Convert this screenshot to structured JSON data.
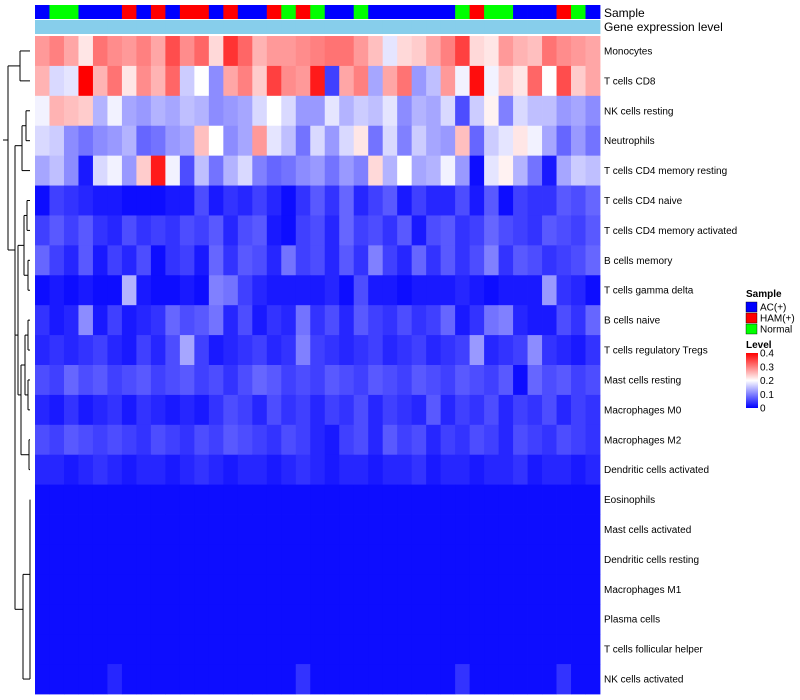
{
  "chart_data": {
    "type": "heatmap",
    "title": "",
    "row_annotation_labels": {
      "sample": "Sample",
      "gene": "Gene expression level"
    },
    "legend": {
      "sample_title": "Sample",
      "level_title": "Level",
      "sample_groups": [
        {
          "name": "AC(+)",
          "color": "#0000ff"
        },
        {
          "name": "HAM(+)",
          "color": "#ff0000"
        },
        {
          "name": "Normal",
          "color": "#00ff00"
        }
      ],
      "level_ticks": [
        "0.4",
        "0.3",
        "0.2",
        "0.1",
        "0"
      ],
      "level_range": [
        0,
        0.4
      ],
      "colors": {
        "low": "#0000ff",
        "mid": "#ffffff",
        "high": "#ff0000"
      }
    },
    "columns_sample_group": [
      "AC(+)",
      "Normal",
      "Normal",
      "AC(+)",
      "AC(+)",
      "AC(+)",
      "HAM(+)",
      "AC(+)",
      "HAM(+)",
      "AC(+)",
      "HAM(+)",
      "HAM(+)",
      "AC(+)",
      "HAM(+)",
      "AC(+)",
      "AC(+)",
      "HAM(+)",
      "Normal",
      "HAM(+)",
      "Normal",
      "AC(+)",
      "AC(+)",
      "Normal",
      "AC(+)",
      "AC(+)",
      "AC(+)",
      "AC(+)",
      "AC(+)",
      "AC(+)",
      "Normal",
      "HAM(+)",
      "Normal",
      "Normal",
      "AC(+)",
      "AC(+)",
      "AC(+)",
      "HAM(+)",
      "Normal",
      "AC(+)"
    ],
    "rows": [
      "Monocytes",
      "T cells CD8",
      "NK cells resting",
      "Neutrophils",
      "T cells CD4 memory resting",
      "T cells CD4 naive",
      "T cells CD4 memory activated",
      "B cells memory",
      "T cells gamma delta",
      "B cells naive",
      "T cells regulatory  Tregs",
      "Mast cells resting",
      "Macrophages M0",
      "Macrophages M2",
      "Dendritic cells activated",
      "Eosinophils",
      "Mast cells activated",
      "Dendritic cells resting",
      "Macrophages M1",
      "Plasma cells",
      "T cells follicular helper",
      "NK cells activated"
    ],
    "values": [
      [
        0.28,
        0.3,
        0.27,
        0.22,
        0.31,
        0.29,
        0.28,
        0.3,
        0.27,
        0.34,
        0.29,
        0.32,
        0.23,
        0.36,
        0.32,
        0.26,
        0.28,
        0.28,
        0.29,
        0.3,
        0.31,
        0.31,
        0.28,
        0.25,
        0.18,
        0.23,
        0.24,
        0.27,
        0.3,
        0.35,
        0.23,
        0.22,
        0.28,
        0.26,
        0.25,
        0.31,
        0.29,
        0.28,
        0.27
      ],
      [
        0.26,
        0.17,
        0.18,
        0.4,
        0.26,
        0.31,
        0.22,
        0.29,
        0.26,
        0.32,
        0.16,
        0.2,
        0.11,
        0.27,
        0.3,
        0.24,
        0.35,
        0.29,
        0.28,
        0.38,
        0.05,
        0.27,
        0.3,
        0.13,
        0.27,
        0.31,
        0.12,
        0.15,
        0.28,
        0.19,
        0.39,
        0.19,
        0.24,
        0.22,
        0.32,
        0.2,
        0.34,
        0.24,
        0.27
      ],
      [
        0.19,
        0.26,
        0.25,
        0.24,
        0.14,
        0.19,
        0.13,
        0.12,
        0.14,
        0.13,
        0.15,
        0.14,
        0.11,
        0.12,
        0.13,
        0.17,
        0.2,
        0.17,
        0.12,
        0.12,
        0.18,
        0.14,
        0.16,
        0.15,
        0.18,
        0.11,
        0.14,
        0.13,
        0.17,
        0.06,
        0.16,
        0.21,
        0.1,
        0.17,
        0.15,
        0.15,
        0.12,
        0.13,
        0.11
      ],
      [
        0.17,
        0.16,
        0.11,
        0.09,
        0.11,
        0.12,
        0.14,
        0.08,
        0.09,
        0.12,
        0.13,
        0.25,
        0.2,
        0.11,
        0.13,
        0.28,
        0.18,
        0.15,
        0.09,
        0.17,
        0.12,
        0.17,
        0.22,
        0.09,
        0.17,
        0.1,
        0.16,
        0.13,
        0.12,
        0.25,
        0.08,
        0.16,
        0.18,
        0.22,
        0.19,
        0.13,
        0.08,
        0.12,
        0.09
      ],
      [
        0.13,
        0.15,
        0.11,
        0.02,
        0.17,
        0.19,
        0.12,
        0.24,
        0.38,
        0.19,
        0.06,
        0.15,
        0.09,
        0.14,
        0.17,
        0.1,
        0.08,
        0.09,
        0.11,
        0.12,
        0.09,
        0.12,
        0.1,
        0.23,
        0.14,
        0.2,
        0.13,
        0.14,
        0.19,
        0.12,
        0.01,
        0.18,
        0.21,
        0.14,
        0.09,
        0.02,
        0.13,
        0.16,
        0.15
      ],
      [
        0.01,
        0.05,
        0.04,
        0.03,
        0.02,
        0.02,
        0.01,
        0.01,
        0.01,
        0.02,
        0.02,
        0.06,
        0.02,
        0.04,
        0.03,
        0.05,
        0.03,
        0.01,
        0.04,
        0.07,
        0.04,
        0.08,
        0.03,
        0.05,
        0.07,
        0.02,
        0.05,
        0.03,
        0.03,
        0.06,
        0.02,
        0.07,
        0.01,
        0.05,
        0.04,
        0.04,
        0.07,
        0.06,
        0.08
      ],
      [
        0.05,
        0.07,
        0.05,
        0.07,
        0.04,
        0.03,
        0.06,
        0.04,
        0.05,
        0.04,
        0.06,
        0.05,
        0.07,
        0.03,
        0.06,
        0.07,
        0.02,
        0.01,
        0.05,
        0.06,
        0.03,
        0.08,
        0.05,
        0.06,
        0.04,
        0.07,
        0.02,
        0.06,
        0.07,
        0.04,
        0.05,
        0.08,
        0.06,
        0.05,
        0.04,
        0.07,
        0.06,
        0.05,
        0.07
      ],
      [
        0.08,
        0.05,
        0.03,
        0.07,
        0.02,
        0.05,
        0.03,
        0.06,
        0.01,
        0.04,
        0.05,
        0.02,
        0.08,
        0.04,
        0.07,
        0.06,
        0.03,
        0.09,
        0.05,
        0.06,
        0.03,
        0.07,
        0.04,
        0.1,
        0.05,
        0.03,
        0.08,
        0.04,
        0.07,
        0.04,
        0.06,
        0.1,
        0.04,
        0.07,
        0.06,
        0.04,
        0.05,
        0.06,
        0.08
      ],
      [
        0.01,
        0.02,
        0.01,
        0.02,
        0.01,
        0.01,
        0.14,
        0.02,
        0.01,
        0.01,
        0.02,
        0.01,
        0.1,
        0.09,
        0.05,
        0.03,
        0.02,
        0.02,
        0.02,
        0.02,
        0.03,
        0.01,
        0.06,
        0.02,
        0.02,
        0.01,
        0.02,
        0.02,
        0.02,
        0.03,
        0.02,
        0.01,
        0.02,
        0.02,
        0.02,
        0.12,
        0.04,
        0.03,
        0.01
      ],
      [
        0.04,
        0.02,
        0.03,
        0.11,
        0.02,
        0.05,
        0.02,
        0.03,
        0.04,
        0.08,
        0.06,
        0.07,
        0.09,
        0.03,
        0.06,
        0.02,
        0.04,
        0.03,
        0.09,
        0.04,
        0.06,
        0.03,
        0.07,
        0.05,
        0.04,
        0.06,
        0.04,
        0.05,
        0.08,
        0.02,
        0.04,
        0.09,
        0.1,
        0.03,
        0.02,
        0.02,
        0.06,
        0.04,
        0.08
      ],
      [
        0.03,
        0.04,
        0.03,
        0.04,
        0.05,
        0.03,
        0.02,
        0.05,
        0.03,
        0.06,
        0.13,
        0.05,
        0.02,
        0.03,
        0.04,
        0.05,
        0.03,
        0.04,
        0.1,
        0.05,
        0.04,
        0.03,
        0.04,
        0.05,
        0.03,
        0.04,
        0.05,
        0.03,
        0.04,
        0.05,
        0.12,
        0.03,
        0.04,
        0.05,
        0.11,
        0.04,
        0.03,
        0.02,
        0.04
      ],
      [
        0.06,
        0.05,
        0.08,
        0.06,
        0.07,
        0.05,
        0.06,
        0.07,
        0.05,
        0.06,
        0.07,
        0.05,
        0.06,
        0.04,
        0.06,
        0.08,
        0.07,
        0.05,
        0.06,
        0.05,
        0.07,
        0.06,
        0.05,
        0.07,
        0.06,
        0.05,
        0.07,
        0.06,
        0.05,
        0.07,
        0.06,
        0.05,
        0.07,
        0.01,
        0.08,
        0.06,
        0.07,
        0.05,
        0.06
      ],
      [
        0.03,
        0.02,
        0.04,
        0.02,
        0.03,
        0.04,
        0.02,
        0.04,
        0.03,
        0.02,
        0.03,
        0.02,
        0.04,
        0.06,
        0.05,
        0.03,
        0.06,
        0.04,
        0.05,
        0.03,
        0.05,
        0.04,
        0.06,
        0.03,
        0.05,
        0.04,
        0.03,
        0.07,
        0.03,
        0.05,
        0.04,
        0.06,
        0.03,
        0.05,
        0.04,
        0.06,
        0.03,
        0.05,
        0.04
      ],
      [
        0.06,
        0.05,
        0.07,
        0.06,
        0.05,
        0.06,
        0.05,
        0.04,
        0.06,
        0.05,
        0.04,
        0.06,
        0.05,
        0.07,
        0.06,
        0.05,
        0.04,
        0.06,
        0.05,
        0.03,
        0.02,
        0.05,
        0.06,
        0.03,
        0.07,
        0.05,
        0.06,
        0.03,
        0.05,
        0.04,
        0.06,
        0.05,
        0.03,
        0.06,
        0.05,
        0.04,
        0.06,
        0.05,
        0.04
      ],
      [
        0.03,
        0.03,
        0.02,
        0.03,
        0.04,
        0.03,
        0.02,
        0.03,
        0.03,
        0.02,
        0.03,
        0.04,
        0.03,
        0.02,
        0.03,
        0.03,
        0.02,
        0.03,
        0.04,
        0.03,
        0.02,
        0.03,
        0.03,
        0.02,
        0.03,
        0.03,
        0.04,
        0.02,
        0.03,
        0.03,
        0.02,
        0.03,
        0.03,
        0.04,
        0.02,
        0.03,
        0.03,
        0.02,
        0.03
      ],
      [
        0.01,
        0.01,
        0.01,
        0.01,
        0.01,
        0.01,
        0.01,
        0.01,
        0.01,
        0.01,
        0.01,
        0.01,
        0.01,
        0.01,
        0.01,
        0.01,
        0.01,
        0.01,
        0.01,
        0.01,
        0.01,
        0.01,
        0.01,
        0.01,
        0.01,
        0.01,
        0.01,
        0.01,
        0.01,
        0.01,
        0.01,
        0.01,
        0.01,
        0.01,
        0.01,
        0.01,
        0.01,
        0.01,
        0.01
      ],
      [
        0.01,
        0.01,
        0.01,
        0.01,
        0.01,
        0.01,
        0.01,
        0.01,
        0.01,
        0.01,
        0.01,
        0.01,
        0.01,
        0.01,
        0.01,
        0.01,
        0.01,
        0.01,
        0.01,
        0.01,
        0.01,
        0.01,
        0.01,
        0.01,
        0.01,
        0.01,
        0.01,
        0.01,
        0.01,
        0.01,
        0.01,
        0.01,
        0.01,
        0.01,
        0.01,
        0.01,
        0.01,
        0.01,
        0.01
      ],
      [
        0.01,
        0.01,
        0.01,
        0.01,
        0.01,
        0.01,
        0.01,
        0.01,
        0.01,
        0.01,
        0.01,
        0.01,
        0.01,
        0.01,
        0.01,
        0.01,
        0.01,
        0.01,
        0.01,
        0.01,
        0.01,
        0.01,
        0.01,
        0.01,
        0.01,
        0.01,
        0.01,
        0.01,
        0.01,
        0.01,
        0.01,
        0.01,
        0.01,
        0.01,
        0.01,
        0.01,
        0.01,
        0.01,
        0.01
      ],
      [
        0.01,
        0.01,
        0.01,
        0.01,
        0.01,
        0.01,
        0.01,
        0.01,
        0.01,
        0.01,
        0.01,
        0.01,
        0.01,
        0.01,
        0.01,
        0.01,
        0.01,
        0.01,
        0.01,
        0.01,
        0.01,
        0.01,
        0.01,
        0.01,
        0.01,
        0.01,
        0.01,
        0.01,
        0.01,
        0.01,
        0.01,
        0.01,
        0.01,
        0.01,
        0.01,
        0.01,
        0.01,
        0.01,
        0.01
      ],
      [
        0.01,
        0.01,
        0.01,
        0.01,
        0.01,
        0.01,
        0.01,
        0.01,
        0.01,
        0.01,
        0.01,
        0.01,
        0.01,
        0.01,
        0.01,
        0.01,
        0.01,
        0.01,
        0.01,
        0.01,
        0.01,
        0.01,
        0.01,
        0.01,
        0.01,
        0.01,
        0.01,
        0.01,
        0.01,
        0.01,
        0.01,
        0.01,
        0.01,
        0.01,
        0.01,
        0.01,
        0.01,
        0.01,
        0.01
      ],
      [
        0.01,
        0.01,
        0.01,
        0.01,
        0.01,
        0.01,
        0.01,
        0.01,
        0.01,
        0.01,
        0.01,
        0.01,
        0.01,
        0.01,
        0.01,
        0.01,
        0.01,
        0.01,
        0.01,
        0.01,
        0.01,
        0.01,
        0.01,
        0.01,
        0.01,
        0.01,
        0.01,
        0.01,
        0.01,
        0.01,
        0.01,
        0.01,
        0.01,
        0.01,
        0.01,
        0.01,
        0.01,
        0.01,
        0.01
      ],
      [
        0.01,
        0.01,
        0.01,
        0.01,
        0.01,
        0.03,
        0.01,
        0.01,
        0.01,
        0.01,
        0.01,
        0.01,
        0.01,
        0.01,
        0.01,
        0.01,
        0.01,
        0.01,
        0.04,
        0.01,
        0.01,
        0.01,
        0.01,
        0.01,
        0.01,
        0.01,
        0.01,
        0.01,
        0.01,
        0.04,
        0.01,
        0.01,
        0.01,
        0.01,
        0.01,
        0.01,
        0.04,
        0.01,
        0.01
      ]
    ],
    "gene_expression_level": [
      0.15,
      0.15,
      0.15,
      0.15,
      0.15,
      0.15,
      0.15,
      0.15,
      0.15,
      0.15,
      0.15,
      0.15,
      0.15,
      0.15,
      0.15,
      0.15,
      0.15,
      0.15,
      0.15,
      0.15,
      0.15,
      0.15,
      0.15,
      0.15,
      0.15,
      0.15,
      0.15,
      0.15,
      0.15,
      0.15,
      0.15,
      0.15,
      0.15,
      0.15,
      0.15,
      0.15,
      0.15,
      0.15,
      0.15
    ]
  }
}
